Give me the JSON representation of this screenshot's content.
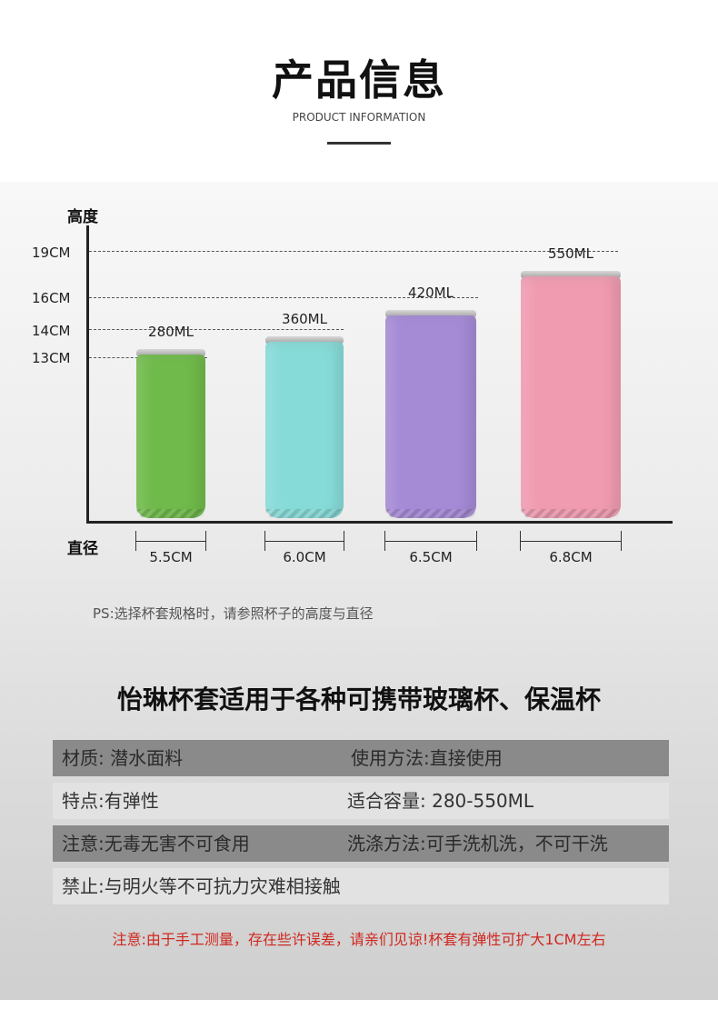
{
  "header": {
    "title": "产品信息",
    "subtitle": "PRODUCT INFORMATION"
  },
  "chart_data": {
    "type": "bar",
    "ylabel": "高度",
    "xlabel": "直径",
    "y_ticks": [
      "19CM",
      "16CM",
      "14CM",
      "13CM"
    ],
    "categories": [
      "280ML",
      "360ML",
      "420ML",
      "550ML"
    ],
    "heights_cm": [
      13,
      14,
      16,
      19
    ],
    "diameters": [
      "5.5CM",
      "6.0CM",
      "6.5CM",
      "6.8CM"
    ],
    "colors": [
      "#6fba4a",
      "#86dbd8",
      "#a58ad6",
      "#f09bb0"
    ]
  },
  "ps_note": "PS:选择杯套规格时，请参照杯子的高度与直径",
  "headline": "怡琳杯套适用于各种可携带玻璃杯、保温杯",
  "spec_rows": [
    {
      "left": "材质: 潜水面料",
      "right": "使用方法:直接使用"
    },
    {
      "left": "特点:有弹性",
      "right": "适合容量: 280-550ML"
    },
    {
      "left": "注意:无毒无害不可食用",
      "right": "洗涤方法:可手洗机洗，不可干洗"
    },
    {
      "left": "禁止:与明火等不可抗力灾难相接触",
      "right": ""
    }
  ],
  "notice": "注意:由于手工测量，存在些许误差，请亲们见谅!杯套有弹性可扩大1CM左右"
}
